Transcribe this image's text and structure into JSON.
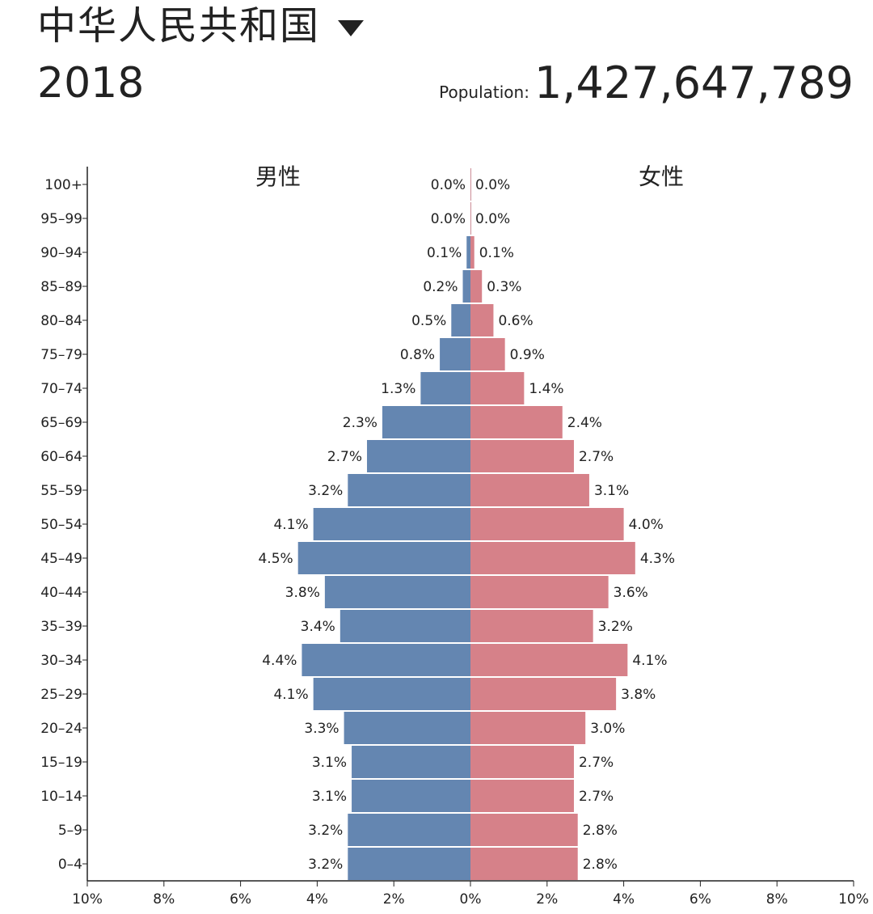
{
  "header": {
    "country": "中华人民共和国",
    "year": "2018",
    "population_label": "Population:",
    "population_value": "1,427,647,789"
  },
  "chart_data": {
    "type": "bar",
    "orientation": "horizontal",
    "categories": [
      "100+",
      "95–99",
      "90–94",
      "85–89",
      "80–84",
      "75–79",
      "70–74",
      "65–69",
      "60–64",
      "55–59",
      "50–54",
      "45–49",
      "40–44",
      "35–39",
      "30–34",
      "25–29",
      "20–24",
      "15–19",
      "10–14",
      "5–9",
      "0–4"
    ],
    "series": [
      {
        "name": "男性",
        "values": [
          0.0,
          0.0,
          0.1,
          0.2,
          0.5,
          0.8,
          1.3,
          2.3,
          2.7,
          3.2,
          4.1,
          4.5,
          3.8,
          3.4,
          4.4,
          4.1,
          3.3,
          3.1,
          3.1,
          3.2,
          3.2
        ],
        "labels": [
          "0.0%",
          "0.0%",
          "0.1%",
          "0.2%",
          "0.5%",
          "0.8%",
          "1.3%",
          "2.3%",
          "2.7%",
          "3.2%",
          "4.1%",
          "4.5%",
          "3.8%",
          "3.4%",
          "4.4%",
          "4.1%",
          "3.3%",
          "3.1%",
          "3.1%",
          "3.2%",
          "3.2%"
        ],
        "color": "#6486b1"
      },
      {
        "name": "女性",
        "values": [
          0.0,
          0.0,
          0.1,
          0.3,
          0.6,
          0.9,
          1.4,
          2.4,
          2.7,
          3.1,
          4.0,
          4.3,
          3.6,
          3.2,
          4.1,
          3.8,
          3.0,
          2.7,
          2.7,
          2.8,
          2.8
        ],
        "labels": [
          "0.0%",
          "0.0%",
          "0.1%",
          "0.3%",
          "0.6%",
          "0.9%",
          "1.4%",
          "2.4%",
          "2.7%",
          "3.1%",
          "4.0%",
          "4.3%",
          "3.6%",
          "3.2%",
          "4.1%",
          "3.8%",
          "3.0%",
          "2.7%",
          "2.7%",
          "2.8%",
          "2.8%"
        ],
        "color": "#d68189"
      }
    ],
    "xlim": [
      -10,
      10
    ],
    "xticks": [
      -10,
      -8,
      -6,
      -4,
      -2,
      0,
      2,
      4,
      6,
      8,
      10
    ],
    "xtick_labels": [
      "10%",
      "8%",
      "6%",
      "4%",
      "2%",
      "0%",
      "2%",
      "4%",
      "6%",
      "8%",
      "10%"
    ],
    "grid": false
  }
}
